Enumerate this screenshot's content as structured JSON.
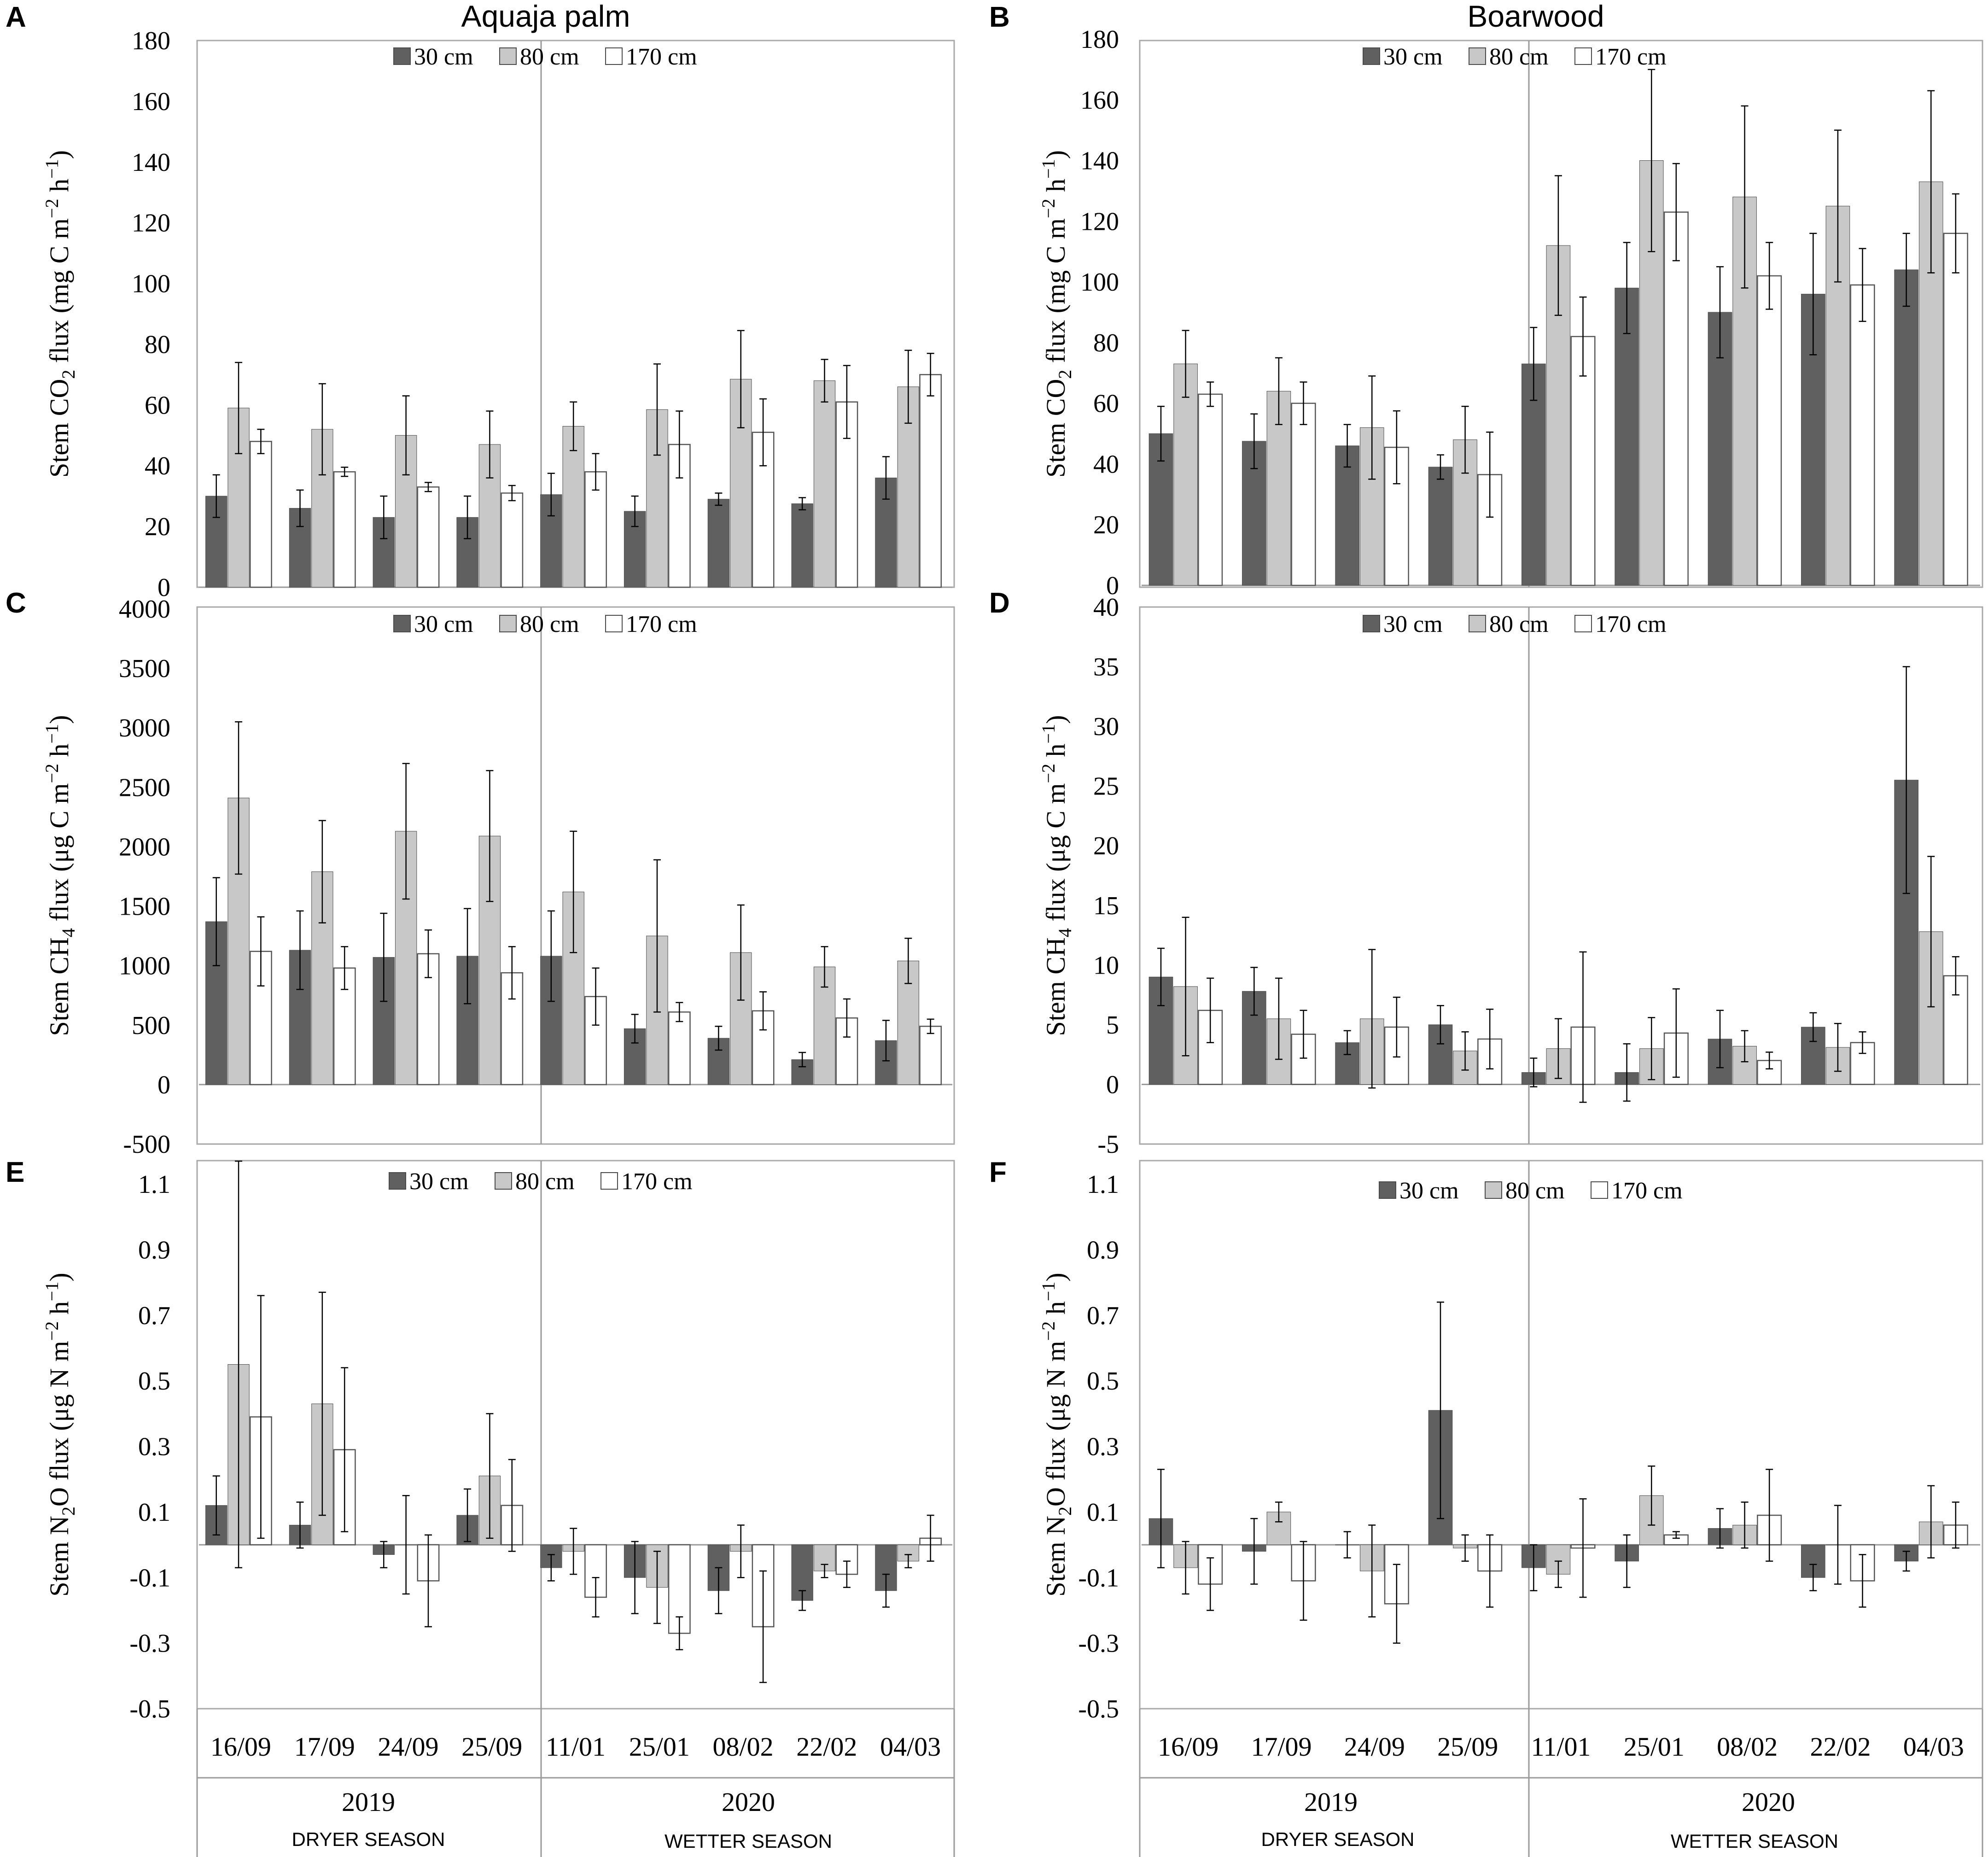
{
  "figure": {
    "columns": [
      {
        "title": "Aquaja palm"
      },
      {
        "title": "Boarwood"
      }
    ],
    "dates": [
      "16/09",
      "17/09",
      "24/09",
      "25/09",
      "11/01",
      "25/01",
      "08/02",
      "22/02",
      "04/03"
    ],
    "years": [
      "2019",
      "2020"
    ],
    "seasons": [
      "DRYER SEASON",
      "WETTER SEASON"
    ],
    "series_colors": [
      "#606060",
      "#c8c8c8",
      "#ffffff"
    ]
  },
  "chart_data": [
    {
      "id": "A",
      "type": "bar",
      "letter": "A",
      "column": "Aquaja palm",
      "ylabel_pre": "Stem CO",
      "ylabel_sub": "2",
      "ylabel_post": " flux (mg C m",
      "ylabel_sup": "−2",
      "ylabel_end": " h",
      "ylabel_sup2": "−1",
      "ylabel_close": ")",
      "ylim": [
        0,
        180
      ],
      "yticks": [
        "0",
        "20",
        "40",
        "60",
        "80",
        "100",
        "120",
        "140",
        "160",
        "180"
      ],
      "ytick_values": [
        0,
        20,
        40,
        60,
        80,
        100,
        120,
        140,
        160,
        180
      ],
      "categories": [
        "16/09",
        "17/09",
        "24/09",
        "25/09",
        "11/01",
        "25/01",
        "08/02",
        "22/02",
        "04/03"
      ],
      "series": [
        {
          "name": "30 cm",
          "values": [
            30,
            26,
            23,
            23,
            30.5,
            25,
            29,
            27.5,
            36
          ],
          "errors": [
            7,
            6,
            7,
            7,
            7,
            5,
            2,
            2,
            7
          ]
        },
        {
          "name": "80 cm",
          "values": [
            59,
            52,
            50,
            47,
            53,
            58.5,
            68.5,
            68,
            66
          ],
          "errors": [
            15,
            15,
            13,
            11,
            8,
            15,
            16,
            7,
            12
          ]
        },
        {
          "name": "170 cm",
          "values": [
            48,
            38,
            33,
            31,
            38,
            47,
            51,
            61,
            70
          ],
          "errors": [
            4,
            1.5,
            1.5,
            2.5,
            6,
            11,
            11,
            12,
            7
          ]
        }
      ]
    },
    {
      "id": "B",
      "type": "bar",
      "letter": "B",
      "column": "Boarwood",
      "ylabel_pre": "Stem CO",
      "ylabel_sub": "2",
      "ylabel_post": " flux (mg C m",
      "ylabel_sup": "−2",
      "ylabel_end": " h",
      "ylabel_sup2": "−1",
      "ylabel_close": ")",
      "ylim": [
        0,
        180
      ],
      "yticks": [
        "0",
        "20",
        "40",
        "60",
        "80",
        "100",
        "120",
        "140",
        "160",
        "180"
      ],
      "ytick_values": [
        0,
        20,
        40,
        60,
        80,
        100,
        120,
        140,
        160,
        180
      ],
      "categories": [
        "16/09",
        "17/09",
        "24/09",
        "25/09",
        "11/01",
        "25/01",
        "08/02",
        "22/02",
        "04/03"
      ],
      "series": [
        {
          "name": "30 cm",
          "values": [
            50,
            47.5,
            46,
            39,
            73,
            98,
            90,
            96,
            104
          ],
          "errors": [
            9,
            9,
            7,
            4,
            12,
            15,
            15,
            20,
            12
          ]
        },
        {
          "name": "80 cm",
          "values": [
            73,
            64,
            52,
            48,
            112,
            140,
            128,
            125,
            133
          ],
          "errors": [
            11,
            11,
            17,
            11,
            23,
            30,
            30,
            25,
            30
          ]
        },
        {
          "name": "170 cm",
          "values": [
            63,
            60,
            45.5,
            36.5,
            82,
            123,
            102,
            99,
            116
          ],
          "errors": [
            4,
            7,
            12,
            14,
            13,
            16,
            11,
            12,
            13
          ]
        }
      ]
    },
    {
      "id": "C",
      "type": "bar",
      "letter": "C",
      "column": "Aquaja palm",
      "ylabel_pre": "Stem CH",
      "ylabel_sub": "4",
      "ylabel_post": " flux (μg C m",
      "ylabel_sup": "−2",
      "ylabel_end": " h",
      "ylabel_sup2": "−1",
      "ylabel_close": ")",
      "ylim": [
        -500,
        4000
      ],
      "yticks": [
        "-500",
        "0",
        "500",
        "1000",
        "1500",
        "2000",
        "2500",
        "3000",
        "3500",
        "4000"
      ],
      "ytick_values": [
        -500,
        0,
        500,
        1000,
        1500,
        2000,
        2500,
        3000,
        3500,
        4000
      ],
      "categories": [
        "16/09",
        "17/09",
        "24/09",
        "25/09",
        "11/01",
        "25/01",
        "08/02",
        "22/02",
        "04/03"
      ],
      "series": [
        {
          "name": "30 cm",
          "values": [
            1370,
            1130,
            1070,
            1080,
            1080,
            470,
            390,
            210,
            370
          ],
          "errors": [
            370,
            330,
            370,
            400,
            380,
            120,
            100,
            60,
            170
          ]
        },
        {
          "name": "80 cm",
          "values": [
            2410,
            1790,
            2130,
            2090,
            1620,
            1250,
            1110,
            990,
            1040
          ],
          "errors": [
            640,
            430,
            570,
            550,
            510,
            640,
            400,
            170,
            190
          ]
        },
        {
          "name": "170 cm",
          "values": [
            1120,
            980,
            1100,
            940,
            740,
            610,
            620,
            560,
            490
          ],
          "errors": [
            290,
            180,
            200,
            220,
            240,
            80,
            160,
            160,
            60
          ]
        }
      ]
    },
    {
      "id": "D",
      "type": "bar",
      "letter": "D",
      "column": "Boarwood",
      "ylabel_pre": "Stem CH",
      "ylabel_sub": "4",
      "ylabel_post": " flux (μg C m",
      "ylabel_sup": "−2",
      "ylabel_end": " h",
      "ylabel_sup2": "−1",
      "ylabel_close": ")",
      "ylim": [
        -5,
        40
      ],
      "yticks": [
        "-5",
        "0",
        "5",
        "10",
        "15",
        "20",
        "25",
        "30",
        "35",
        "40"
      ],
      "ytick_values": [
        -5,
        0,
        5,
        10,
        15,
        20,
        25,
        30,
        35,
        40
      ],
      "categories": [
        "16/09",
        "17/09",
        "24/09",
        "25/09",
        "11/01",
        "25/01",
        "08/02",
        "22/02",
        "04/03"
      ],
      "series": [
        {
          "name": "30 cm",
          "values": [
            9,
            7.8,
            3.5,
            5,
            1,
            1,
            3.8,
            4.8,
            25.5
          ],
          "errors": [
            2.4,
            2,
            1,
            1.6,
            1.2,
            2.4,
            2.4,
            1.2,
            9.5
          ]
        },
        {
          "name": "80 cm",
          "values": [
            8.2,
            5.5,
            5.5,
            2.8,
            3,
            3,
            3.2,
            3.1,
            12.8
          ],
          "errors": [
            5.8,
            3.4,
            5.8,
            1.6,
            2.5,
            2.6,
            1.3,
            2,
            6.3
          ]
        },
        {
          "name": "170 cm",
          "values": [
            6.2,
            4.2,
            4.8,
            3.8,
            4.8,
            4.3,
            2,
            3.5,
            9.1
          ],
          "errors": [
            2.7,
            2,
            2.5,
            2.5,
            6.3,
            3.7,
            0.7,
            0.9,
            1.6
          ]
        }
      ]
    },
    {
      "id": "E",
      "type": "bar",
      "letter": "E",
      "column": "Aquaja palm",
      "ylabel_pre": "Stem N",
      "ylabel_sub": "2",
      "ylabel_post": "O flux (μg N m",
      "ylabel_sup": "−2",
      "ylabel_end": " h",
      "ylabel_sup2": "−1",
      "ylabel_close": ")",
      "ylim": [
        -0.5,
        1.2
      ],
      "yticks": [
        "-0.5",
        "-0.3",
        "-0.1",
        "0.1",
        "0.3",
        "0.5",
        "0.7",
        "0.9",
        "1.1"
      ],
      "ytick_values": [
        -0.5,
        -0.3,
        -0.1,
        0.1,
        0.3,
        0.5,
        0.7,
        0.9,
        1.1
      ],
      "categories": [
        "16/09",
        "17/09",
        "24/09",
        "25/09",
        "11/01",
        "25/01",
        "08/02",
        "22/02",
        "04/03"
      ],
      "series": [
        {
          "name": "30 cm",
          "values": [
            0.12,
            0.06,
            -0.03,
            0.09,
            -0.07,
            -0.1,
            -0.14,
            -0.17,
            -0.14
          ],
          "errors": [
            0.09,
            0.07,
            0.04,
            0.08,
            0.04,
            0.11,
            0.07,
            0.03,
            0.05
          ]
        },
        {
          "name": "80 cm",
          "values": [
            0.55,
            0.43,
            0,
            0.21,
            -0.02,
            -0.13,
            -0.02,
            -0.08,
            -0.05
          ],
          "errors": [
            0.62,
            0.34,
            0.15,
            0.19,
            0.07,
            0.11,
            0.08,
            0.02,
            0.02
          ]
        },
        {
          "name": "170 cm",
          "values": [
            0.39,
            0.29,
            -0.11,
            0.12,
            -0.16,
            -0.27,
            -0.25,
            -0.09,
            0.02
          ],
          "errors": [
            0.37,
            0.25,
            0.14,
            0.14,
            0.06,
            0.05,
            0.17,
            0.04,
            0.07
          ]
        }
      ]
    },
    {
      "id": "F",
      "type": "bar",
      "letter": "F",
      "column": "Boarwood",
      "ylabel_pre": "Stem N",
      "ylabel_sub": "2",
      "ylabel_post": "O flux (μg N m",
      "ylabel_sup": "−2",
      "ylabel_end": " h",
      "ylabel_sup2": "−1",
      "ylabel_close": ")",
      "ylim": [
        -0.5,
        1.2
      ],
      "yticks": [
        "-0.5",
        "-0.3",
        "-0.1",
        "0.1",
        "0.3",
        "0.5",
        "0.7",
        "0.9",
        "1.1"
      ],
      "ytick_values": [
        -0.5,
        -0.3,
        -0.1,
        0.1,
        0.3,
        0.5,
        0.7,
        0.9,
        1.1
      ],
      "categories": [
        "16/09",
        "17/09",
        "24/09",
        "25/09",
        "11/01",
        "25/01",
        "08/02",
        "22/02",
        "04/03"
      ],
      "series": [
        {
          "name": "30 cm",
          "values": [
            0.08,
            -0.02,
            0,
            0.41,
            -0.07,
            -0.05,
            0.05,
            -0.1,
            -0.05
          ],
          "errors": [
            0.15,
            0.1,
            0.04,
            0.33,
            0.07,
            0.08,
            0.06,
            0.04,
            0.03
          ]
        },
        {
          "name": "80 cm",
          "values": [
            -0.07,
            0.1,
            -0.08,
            -0.01,
            -0.09,
            0.15,
            0.06,
            0,
            0.07
          ],
          "errors": [
            0.08,
            0.03,
            0.14,
            0.04,
            0.04,
            0.09,
            0.07,
            0.12,
            0.11
          ]
        },
        {
          "name": "170 cm",
          "values": [
            -0.12,
            -0.11,
            -0.18,
            -0.08,
            -0.01,
            0.03,
            0.09,
            -0.11,
            0.06
          ],
          "errors": [
            0.08,
            0.12,
            0.12,
            0.11,
            0.15,
            0.01,
            0.14,
            0.08,
            0.07
          ]
        }
      ]
    }
  ]
}
